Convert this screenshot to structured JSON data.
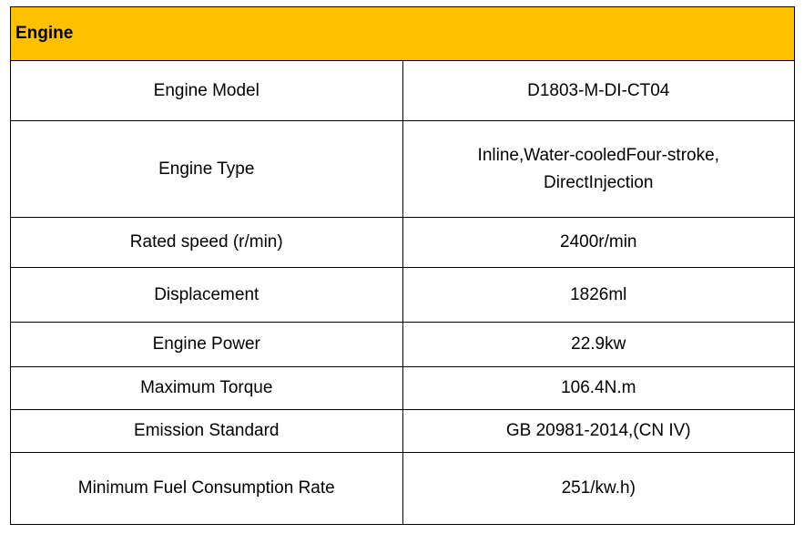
{
  "table": {
    "title": "Engine",
    "rows": [
      [
        "Engine Model",
        [
          "D1803-M-DI-CT04"
        ]
      ],
      [
        "Engine Type",
        [
          "Inline,Water-cooledFour-stroke,",
          "DirectInjection"
        ]
      ],
      [
        "Rated speed (r/min)",
        [
          "2400r/min"
        ]
      ],
      [
        "Displacement",
        [
          "1826ml"
        ]
      ],
      [
        "Engine Power",
        [
          "22.9kw"
        ]
      ],
      [
        "Maximum Torque",
        [
          "106.4N.m"
        ]
      ],
      [
        "Emission Standard",
        [
          "GB 20981-2014,(CN IV)"
        ]
      ],
      [
        "Minimum Fuel Consumption Rate",
        [
          "251/kw.h)"
        ]
      ]
    ]
  }
}
